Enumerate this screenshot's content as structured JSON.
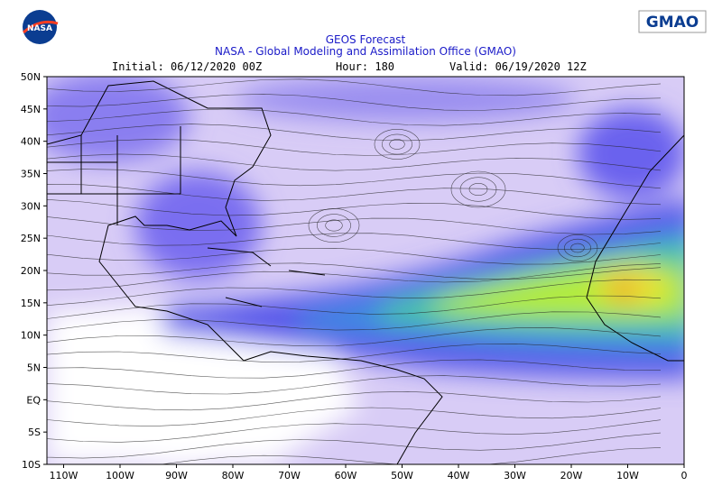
{
  "header": {
    "logo_left": "NASA",
    "logo_right": "GMAO",
    "title": "GEOS Forecast",
    "subtitle": "NASA - Global Modeling and Assimilation Office (GMAO)",
    "initial": "Initial: 06/12/2020 00Z",
    "hour": "Hour: 180",
    "valid": "Valid: 06/19/2020 12Z"
  },
  "axes": {
    "lat_labels": [
      "50N",
      "45N",
      "40N",
      "35N",
      "30N",
      "25N",
      "20N",
      "15N",
      "10N",
      "5N",
      "EQ",
      "5S",
      "10S"
    ],
    "lon_labels": [
      "110W",
      "100W",
      "90W",
      "80W",
      "70W",
      "60W",
      "50W",
      "40W",
      "30W",
      "20W",
      "10W",
      "0"
    ]
  }
}
